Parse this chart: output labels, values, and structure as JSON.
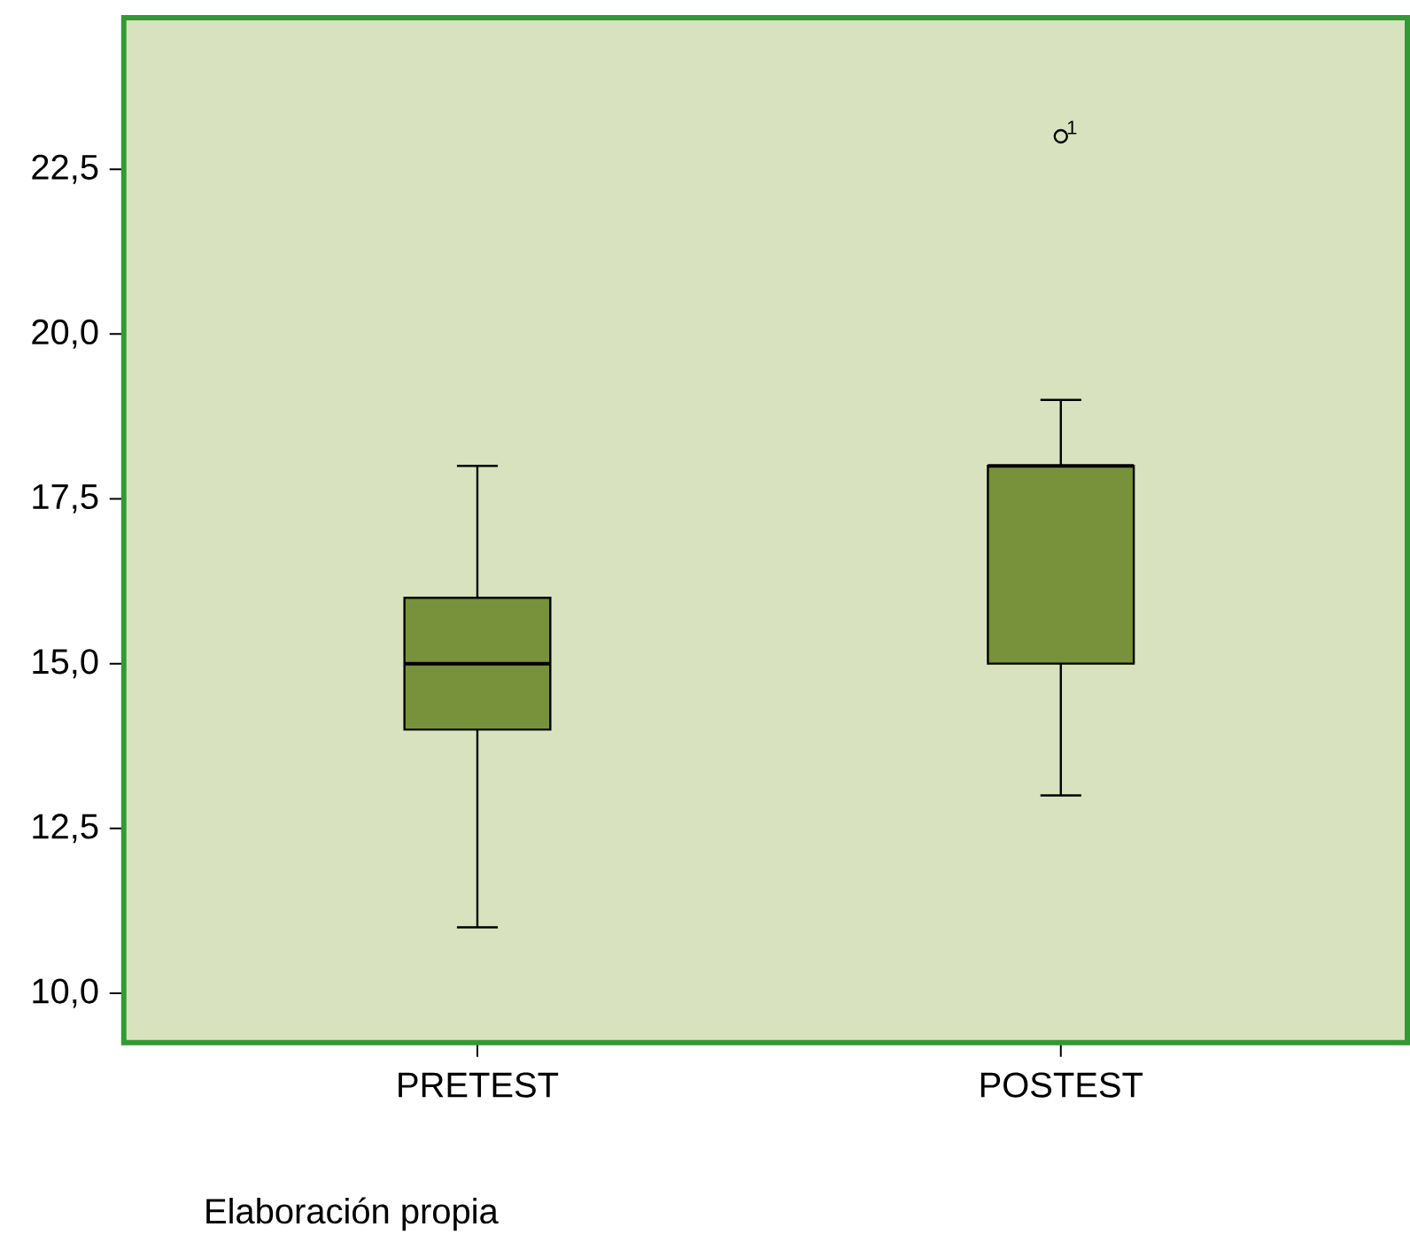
{
  "chart_data": {
    "type": "box",
    "categories": [
      "PRETEST",
      "POSTEST"
    ],
    "boxes": [
      {
        "low": 11,
        "q1": 14,
        "median": 15,
        "q3": 16,
        "high": 18
      },
      {
        "low": 13,
        "q1": 15,
        "median": 18,
        "q3": 18,
        "high": 19,
        "outliers": [
          23
        ]
      }
    ],
    "color": "#77923b",
    "ylim": [
      9.25,
      24.8
    ],
    "yticks": [
      {
        "value": 10,
        "label": "10,0"
      },
      {
        "value": 12.5,
        "label": "12,5"
      },
      {
        "value": 15,
        "label": "15,0"
      },
      {
        "value": 17.5,
        "label": "17,5"
      },
      {
        "value": 20,
        "label": "20,0"
      },
      {
        "value": 22.5,
        "label": "22,5"
      }
    ],
    "annotations": [
      "1",
      "Elaboración propia"
    ]
  }
}
